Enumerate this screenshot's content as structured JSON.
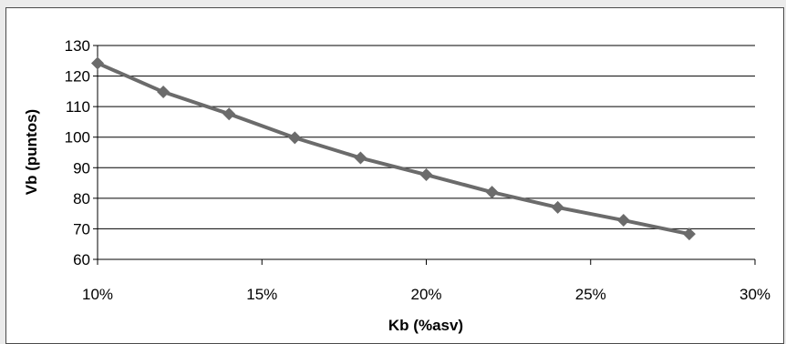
{
  "chart_data": {
    "type": "line",
    "title": "",
    "xlabel": "Kb (%asv)",
    "ylabel": "Vb (puntos)",
    "xlim": [
      0.1,
      0.3
    ],
    "ylim": [
      60,
      130
    ],
    "x_ticks": [
      "10%",
      "15%",
      "20%",
      "25%",
      "30%"
    ],
    "y_ticks": [
      "60",
      "70",
      "80",
      "90",
      "100",
      "110",
      "120",
      "130"
    ],
    "grid": "horizontal",
    "legend": "none",
    "series": [
      {
        "x": [
          0.1,
          0.12,
          0.14,
          0.16,
          0.18,
          0.2,
          0.22,
          0.24,
          0.26,
          0.28
        ],
        "y": [
          124.2,
          114.8,
          107.6,
          99.8,
          93.2,
          87.7,
          82.0,
          77.0,
          72.8,
          68.3
        ],
        "marker": "diamond"
      }
    ],
    "colors": {
      "series": "#6b6b6b",
      "grid": "#000000",
      "background": "#ffffff",
      "frame": "#4a4a4a",
      "page": "#ebebeb"
    }
  }
}
